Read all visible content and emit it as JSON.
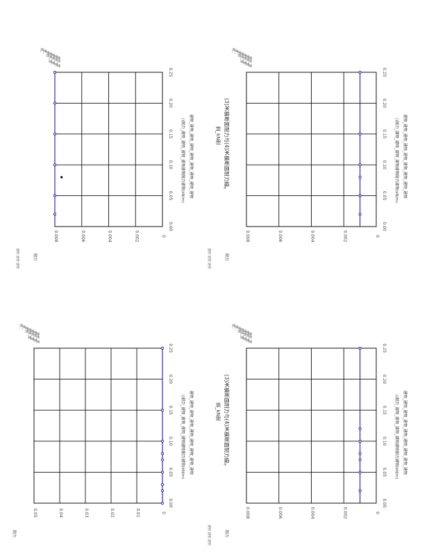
{
  "page": {
    "background": "#ffffff"
  },
  "panels": [
    {
      "title_line1": "(3)Ж橫断面耐力与(4)Ж橫断面耐力線",
      "title_line2": "斜_kN耐",
      "legend": [
        "耐_",
        "建_",
        "建物",
        "建物_建",
        "建物_建",
        "建物_建",
        "建物_建"
      ],
      "note_line1": "()耐力_建物_建物_建物_建物建物耐力建物(kN/m)",
      "note_line2": "建物_建物_建物_建物_建物_建物_建物_建物_建物",
      "side_label": "耐力",
      "corner_mark": "+",
      "footer": "建物 建物 建物"
    },
    {
      "title_line1": "(3)Ж橫断面耐力与(4)Ж橫断面耐力線",
      "title_line2": "斜_kN耐",
      "legend": [
        "耐_",
        "建_",
        "建物",
        "建物_建",
        "建物_建",
        "建物_建",
        "建物_建"
      ],
      "note_line1": "()耐力_建物_建物_建物_建物建物耐力建物(kN/m)",
      "note_line2": "建物_建物_建物_建物_建物_建物_建物_建物_建物",
      "side_label": "耐力",
      "corner_mark": "+",
      "footer": "建物 建物 建物"
    },
    {
      "title_line1": "(3)Ж橫断面耐力与(4)Ж橫断面耐力線",
      "title_line2": "斜_kN耐",
      "legend": [
        "耐_",
        "建_",
        "建物",
        "建物_建",
        "建物_建",
        "建物_建",
        "建物_建"
      ],
      "note_line1": "()耐力_建物_建物_建物_建物建物耐力建物(kN/m)",
      "note_line2": "建物_建物_建物_建物_建物_建物_建物_建物_建物",
      "side_label": "耐力",
      "corner_mark": "+",
      "footer": "建物 建物 建物"
    },
    {
      "title_line1": "(3)Ж橫断面耐力与(4)Ж橫断面耐力線",
      "title_line2": "斜_kN耐",
      "legend": [
        "耐_",
        "建_",
        "建物",
        "建物_建",
        "建物_建",
        "建物_建",
        "建物_建"
      ],
      "note_line1": "()耐力_建物_建物_建物_建物建物耐力建物(kN/m)",
      "note_line2": "建物_建物_建物_建物_建物_建物_建物_建物_建物",
      "side_label": "耐力",
      "corner_mark": "+",
      "footer": "建物 建物 建物"
    }
  ],
  "chart_data": [
    {
      "type": "line",
      "orientation": "rotated-90",
      "x_ticks": [
        "0.00",
        "0.05",
        "0.10",
        "0.15",
        "0.20",
        "0.25"
      ],
      "y_ticks": [
        "0",
        "0.002",
        "0.004",
        "0.006",
        "0.008"
      ],
      "x": [
        0.02,
        0.05,
        0.1,
        0.15,
        0.2,
        0.25
      ],
      "series": [
        {
          "values": [
            0.008,
            0.008,
            0.008,
            0.008,
            0.008,
            0.008
          ]
        }
      ],
      "outlier": {
        "x": 0.08,
        "y": 0.0075
      },
      "line_color": "#1a1aaa",
      "grid": true
    },
    {
      "type": "line",
      "orientation": "rotated-90",
      "x_ticks": [
        "0.00",
        "0.05",
        "0.10",
        "0.15",
        "0.20",
        "0.25"
      ],
      "y_ticks": [
        "0",
        "0.002",
        "0.004",
        "0.006",
        "0.008"
      ],
      "x": [
        0.02,
        0.05,
        0.08,
        0.1,
        0.15,
        0.25
      ],
      "series": [
        {
          "values": [
            0.001,
            0.001,
            0.001,
            0.001,
            0.001,
            0.001
          ]
        }
      ],
      "line_color": "#1a1aaa",
      "grid": true
    },
    {
      "type": "line",
      "orientation": "rotated-90",
      "x_ticks": [
        "0.00",
        "0.05",
        "0.10",
        "0.15",
        "0.20",
        "0.25"
      ],
      "y_ticks": [
        "0",
        "0.01",
        "0.02",
        "0.03",
        "0.04",
        "0.05"
      ],
      "x": [
        0.0,
        0.02,
        0.03,
        0.05,
        0.07,
        0.08,
        0.1,
        0.15,
        0.25
      ],
      "series": [
        {
          "values": [
            0,
            0,
            0,
            0,
            0,
            0,
            0,
            0,
            0
          ]
        }
      ],
      "line_color": "#1a1aaa",
      "grid": true
    },
    {
      "type": "line",
      "orientation": "rotated-90",
      "x_ticks": [
        "0.00",
        "0.05",
        "0.10",
        "0.15",
        "0.20",
        "0.25"
      ],
      "y_ticks": [
        "0",
        "0.002",
        "0.004",
        "0.006",
        "0.008"
      ],
      "x": [
        0.02,
        0.05,
        0.07,
        0.08,
        0.1,
        0.12,
        0.25
      ],
      "series": [
        {
          "values": [
            0.001,
            0.001,
            0.001,
            0.001,
            0.001,
            0.001,
            0.001
          ]
        }
      ],
      "line_color": "#1a1aaa",
      "grid": true
    }
  ]
}
